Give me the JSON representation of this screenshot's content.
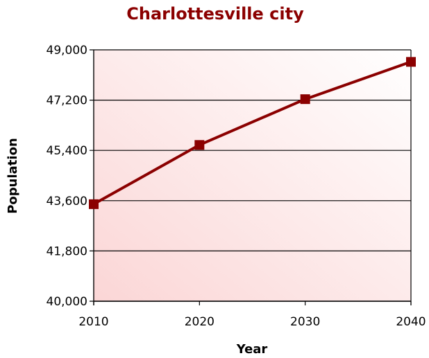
{
  "chart_data": {
    "type": "line",
    "title": "Charlottesville city",
    "xlabel": "Year",
    "ylabel": "Population",
    "x": [
      2010,
      2020,
      2030,
      2040
    ],
    "series": [
      {
        "values": [
          43475,
          45595,
          47235,
          48570
        ]
      }
    ],
    "ylim": [
      40000,
      49000
    ],
    "yticks": [
      "40,000",
      "41,800",
      "43,600",
      "45,400",
      "47,200",
      "49,000"
    ],
    "xticks": [
      "2010",
      "2020",
      "2030",
      "2040"
    ],
    "grid": "horizontal",
    "colors": {
      "line": "#8b0000",
      "title": "#8b0000",
      "plot_bg_start": "#fbd6d6",
      "plot_bg_end": "#ffffff"
    }
  }
}
